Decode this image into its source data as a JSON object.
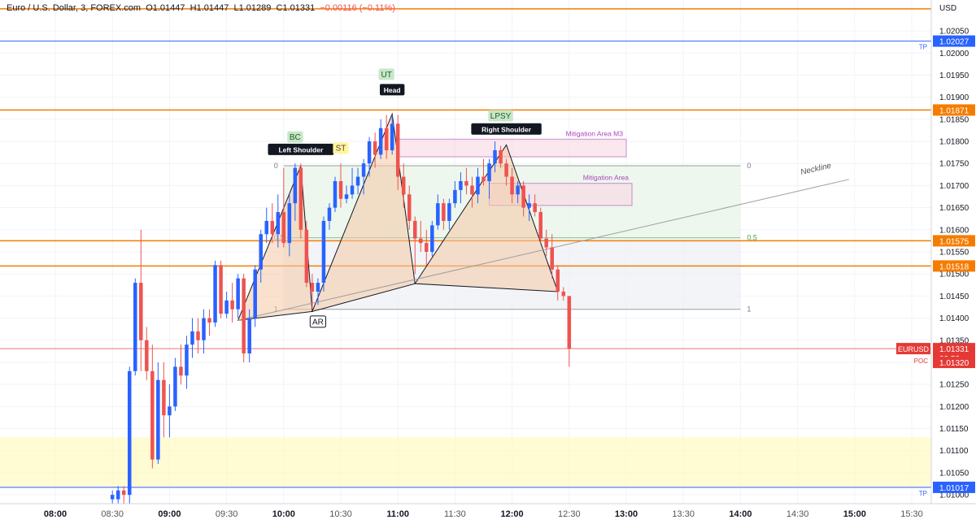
{
  "header": {
    "symbol_name": "Euro / U.S. Dollar, 3, FOREX.com",
    "open": "O1.01447",
    "high": "H1.01447",
    "low": "L1.01289",
    "close": "C1.01331",
    "change": "−0.00116 (−0.11%)"
  },
  "colors": {
    "up": "#2962ff",
    "down": "#ef5350",
    "level": "#f57c00",
    "tp": "#2962ff",
    "current": "#e53935",
    "pattern_fill": "#f4c9a6",
    "mitigation": "#ab47bc",
    "fib_fill": "#e8f5e9",
    "zone_fill": "#fff9c4"
  },
  "chart_data": {
    "type": "candlestick",
    "currency": "USD",
    "ylim": [
      1.0098,
      1.0212
    ],
    "y_ticks": [
      "1.02050",
      "1.02000",
      "1.01950",
      "1.01900",
      "1.01850",
      "1.01800",
      "1.01750",
      "1.01700",
      "1.01650",
      "1.01600",
      "1.01550",
      "1.01500",
      "1.01450",
      "1.01400",
      "1.01350",
      "1.01300",
      "1.01250",
      "1.01200",
      "1.01150",
      "1.01100",
      "1.01050",
      "1.01000"
    ],
    "x_ticks": [
      "08:00",
      "08:30",
      "09:00",
      "09:30",
      "10:00",
      "10:30",
      "11:00",
      "11:30",
      "12:00",
      "12:30",
      "13:00",
      "13:30",
      "14:00",
      "14:30",
      "15:00",
      "15:30"
    ],
    "candles": [
      {
        "t": "08:30",
        "o": 1.0099,
        "h": 1.0101,
        "l": 1.0097,
        "c": 1.01
      },
      {
        "t": "08:33",
        "o": 1.0099,
        "h": 1.0102,
        "l": 1.0097,
        "c": 1.0101
      },
      {
        "t": "08:36",
        "o": 1.0101,
        "h": 1.0102,
        "l": 1.0097,
        "c": 1.01
      },
      {
        "t": "08:39",
        "o": 1.01,
        "h": 1.0129,
        "l": 1.0096,
        "c": 1.0128
      },
      {
        "t": "08:42",
        "o": 1.0128,
        "h": 1.0149,
        "l": 1.0127,
        "c": 1.0148
      },
      {
        "t": "08:45",
        "o": 1.0148,
        "h": 1.016,
        "l": 1.0128,
        "c": 1.0135
      },
      {
        "t": "08:48",
        "o": 1.0135,
        "h": 1.0138,
        "l": 1.0126,
        "c": 1.0128
      },
      {
        "t": "08:51",
        "o": 1.0128,
        "h": 1.0134,
        "l": 1.0106,
        "c": 1.0108
      },
      {
        "t": "08:54",
        "o": 1.0108,
        "h": 1.013,
        "l": 1.0107,
        "c": 1.0126
      },
      {
        "t": "08:57",
        "o": 1.0126,
        "h": 1.013,
        "l": 1.0113,
        "c": 1.0118
      },
      {
        "t": "09:00",
        "o": 1.0118,
        "h": 1.0125,
        "l": 1.0113,
        "c": 1.012
      },
      {
        "t": "09:03",
        "o": 1.012,
        "h": 1.0131,
        "l": 1.0119,
        "c": 1.0129
      },
      {
        "t": "09:06",
        "o": 1.0129,
        "h": 1.0134,
        "l": 1.0125,
        "c": 1.0127
      },
      {
        "t": "09:09",
        "o": 1.0127,
        "h": 1.0136,
        "l": 1.0124,
        "c": 1.0134
      },
      {
        "t": "09:12",
        "o": 1.0134,
        "h": 1.014,
        "l": 1.0131,
        "c": 1.0137
      },
      {
        "t": "09:15",
        "o": 1.0137,
        "h": 1.014,
        "l": 1.0132,
        "c": 1.0135
      },
      {
        "t": "09:18",
        "o": 1.0135,
        "h": 1.0142,
        "l": 1.0132,
        "c": 1.014
      },
      {
        "t": "09:21",
        "o": 1.014,
        "h": 1.0142,
        "l": 1.0136,
        "c": 1.0139
      },
      {
        "t": "09:24",
        "o": 1.0139,
        "h": 1.0153,
        "l": 1.0138,
        "c": 1.0152
      },
      {
        "t": "09:27",
        "o": 1.0152,
        "h": 1.0153,
        "l": 1.014,
        "c": 1.0141
      },
      {
        "t": "09:30",
        "o": 1.0141,
        "h": 1.0146,
        "l": 1.014,
        "c": 1.0144
      },
      {
        "t": "09:33",
        "o": 1.0144,
        "h": 1.0148,
        "l": 1.0139,
        "c": 1.0142
      },
      {
        "t": "09:36",
        "o": 1.0142,
        "h": 1.015,
        "l": 1.014,
        "c": 1.0149
      },
      {
        "t": "09:39",
        "o": 1.0149,
        "h": 1.015,
        "l": 1.013,
        "c": 1.0132
      },
      {
        "t": "09:42",
        "o": 1.0132,
        "h": 1.0142,
        "l": 1.013,
        "c": 1.014
      },
      {
        "t": "09:45",
        "o": 1.014,
        "h": 1.0152,
        "l": 1.0138,
        "c": 1.0151
      },
      {
        "t": "09:48",
        "o": 1.0151,
        "h": 1.016,
        "l": 1.0148,
        "c": 1.0159
      },
      {
        "t": "09:51",
        "o": 1.0159,
        "h": 1.0165,
        "l": 1.0157,
        "c": 1.0162
      },
      {
        "t": "09:54",
        "o": 1.0162,
        "h": 1.0166,
        "l": 1.0157,
        "c": 1.0159
      },
      {
        "t": "09:57",
        "o": 1.0159,
        "h": 1.0168,
        "l": 1.0156,
        "c": 1.0164
      },
      {
        "t": "10:00",
        "o": 1.0164,
        "h": 1.0174,
        "l": 1.0156,
        "c": 1.0157
      },
      {
        "t": "10:03",
        "o": 1.0157,
        "h": 1.0168,
        "l": 1.0154,
        "c": 1.0166
      },
      {
        "t": "10:06",
        "o": 1.0166,
        "h": 1.0175,
        "l": 1.0162,
        "c": 1.0174
      },
      {
        "t": "10:09",
        "o": 1.0174,
        "h": 1.0175,
        "l": 1.0158,
        "c": 1.016
      },
      {
        "t": "10:12",
        "o": 1.016,
        "h": 1.0162,
        "l": 1.0147,
        "c": 1.0148
      },
      {
        "t": "10:15",
        "o": 1.0148,
        "h": 1.015,
        "l": 1.0142,
        "c": 1.0146
      },
      {
        "t": "10:18",
        "o": 1.0146,
        "h": 1.0149,
        "l": 1.0143,
        "c": 1.0148
      },
      {
        "t": "10:21",
        "o": 1.0148,
        "h": 1.0163,
        "l": 1.0146,
        "c": 1.0162
      },
      {
        "t": "10:24",
        "o": 1.0162,
        "h": 1.0166,
        "l": 1.016,
        "c": 1.0165
      },
      {
        "t": "10:27",
        "o": 1.0165,
        "h": 1.0172,
        "l": 1.0164,
        "c": 1.0171
      },
      {
        "t": "10:30",
        "o": 1.0171,
        "h": 1.0175,
        "l": 1.0165,
        "c": 1.0167
      },
      {
        "t": "10:33",
        "o": 1.0167,
        "h": 1.017,
        "l": 1.0166,
        "c": 1.0168
      },
      {
        "t": "10:36",
        "o": 1.0168,
        "h": 1.0174,
        "l": 1.0167,
        "c": 1.017
      },
      {
        "t": "10:39",
        "o": 1.017,
        "h": 1.0174,
        "l": 1.0168,
        "c": 1.0172
      },
      {
        "t": "10:42",
        "o": 1.0172,
        "h": 1.0176,
        "l": 1.0168,
        "c": 1.0175
      },
      {
        "t": "10:45",
        "o": 1.0175,
        "h": 1.0181,
        "l": 1.0172,
        "c": 1.018
      },
      {
        "t": "10:48",
        "o": 1.018,
        "h": 1.0182,
        "l": 1.0174,
        "c": 1.0177
      },
      {
        "t": "10:51",
        "o": 1.0177,
        "h": 1.0185,
        "l": 1.0176,
        "c": 1.0183
      },
      {
        "t": "10:54",
        "o": 1.0183,
        "h": 1.0186,
        "l": 1.0176,
        "c": 1.0178
      },
      {
        "t": "10:57",
        "o": 1.0178,
        "h": 1.0186,
        "l": 1.0177,
        "c": 1.0184
      },
      {
        "t": "11:00",
        "o": 1.0184,
        "h": 1.0186,
        "l": 1.0169,
        "c": 1.0172
      },
      {
        "t": "11:03",
        "o": 1.0172,
        "h": 1.0175,
        "l": 1.0165,
        "c": 1.0168
      },
      {
        "t": "11:06",
        "o": 1.0168,
        "h": 1.017,
        "l": 1.016,
        "c": 1.0162
      },
      {
        "t": "11:09",
        "o": 1.0162,
        "h": 1.0163,
        "l": 1.015,
        "c": 1.0158
      },
      {
        "t": "11:12",
        "o": 1.0158,
        "h": 1.0162,
        "l": 1.0155,
        "c": 1.0157
      },
      {
        "t": "11:15",
        "o": 1.0157,
        "h": 1.016,
        "l": 1.0152,
        "c": 1.0155
      },
      {
        "t": "11:18",
        "o": 1.0155,
        "h": 1.0162,
        "l": 1.0154,
        "c": 1.0161
      },
      {
        "t": "11:21",
        "o": 1.0161,
        "h": 1.0168,
        "l": 1.016,
        "c": 1.0166
      },
      {
        "t": "11:24",
        "o": 1.0166,
        "h": 1.0167,
        "l": 1.016,
        "c": 1.0162
      },
      {
        "t": "11:27",
        "o": 1.0162,
        "h": 1.0167,
        "l": 1.016,
        "c": 1.0166
      },
      {
        "t": "11:30",
        "o": 1.0166,
        "h": 1.0171,
        "l": 1.0165,
        "c": 1.0169
      },
      {
        "t": "11:33",
        "o": 1.0169,
        "h": 1.0173,
        "l": 1.0166,
        "c": 1.0171
      },
      {
        "t": "11:36",
        "o": 1.0171,
        "h": 1.0174,
        "l": 1.0168,
        "c": 1.017
      },
      {
        "t": "11:39",
        "o": 1.017,
        "h": 1.0172,
        "l": 1.0165,
        "c": 1.0168
      },
      {
        "t": "11:42",
        "o": 1.0168,
        "h": 1.0174,
        "l": 1.0166,
        "c": 1.0172
      },
      {
        "t": "11:45",
        "o": 1.0172,
        "h": 1.0176,
        "l": 1.017,
        "c": 1.0171
      },
      {
        "t": "11:48",
        "o": 1.0171,
        "h": 1.0176,
        "l": 1.0167,
        "c": 1.0175
      },
      {
        "t": "11:51",
        "o": 1.0175,
        "h": 1.018,
        "l": 1.0173,
        "c": 1.0178
      },
      {
        "t": "11:54",
        "o": 1.0178,
        "h": 1.0179,
        "l": 1.0174,
        "c": 1.0175
      },
      {
        "t": "11:57",
        "o": 1.0175,
        "h": 1.0176,
        "l": 1.017,
        "c": 1.0172
      },
      {
        "t": "12:00",
        "o": 1.0172,
        "h": 1.0174,
        "l": 1.0166,
        "c": 1.0168
      },
      {
        "t": "12:03",
        "o": 1.0168,
        "h": 1.0171,
        "l": 1.0166,
        "c": 1.017
      },
      {
        "t": "12:06",
        "o": 1.017,
        "h": 1.0171,
        "l": 1.0163,
        "c": 1.0165
      },
      {
        "t": "12:09",
        "o": 1.0165,
        "h": 1.0168,
        "l": 1.0162,
        "c": 1.0166
      },
      {
        "t": "12:12",
        "o": 1.0166,
        "h": 1.0168,
        "l": 1.0163,
        "c": 1.0164
      },
      {
        "t": "12:15",
        "o": 1.0164,
        "h": 1.0165,
        "l": 1.0157,
        "c": 1.0158
      },
      {
        "t": "12:18",
        "o": 1.0158,
        "h": 1.016,
        "l": 1.0154,
        "c": 1.0156
      },
      {
        "t": "12:21",
        "o": 1.0156,
        "h": 1.0159,
        "l": 1.0149,
        "c": 1.0151
      },
      {
        "t": "12:24",
        "o": 1.0151,
        "h": 1.0152,
        "l": 1.0144,
        "c": 1.0146
      },
      {
        "t": "12:27",
        "o": 1.0146,
        "h": 1.0147,
        "l": 1.0144,
        "c": 1.0145
      },
      {
        "t": "12:30",
        "o": 1.0145,
        "h": 1.0145,
        "l": 1.0129,
        "c": 1.01331
      }
    ],
    "levels": [
      {
        "price": 1.021,
        "kind": "level",
        "label": ""
      },
      {
        "price": 1.02027,
        "kind": "tp",
        "label": "1.02027",
        "note": "TP"
      },
      {
        "price": 1.01871,
        "kind": "level",
        "label": "1.01871"
      },
      {
        "price": 1.01575,
        "kind": "level",
        "label": "1.01575"
      },
      {
        "price": 1.01518,
        "kind": "level",
        "label": "1.01518"
      },
      {
        "price": 1.01017,
        "kind": "tp",
        "label": "1.01017",
        "note": "TP"
      }
    ],
    "current_price": {
      "symbol": "EURUSD",
      "price": 1.01331,
      "label": "1.01331",
      "countdown": "00:50"
    },
    "poc": {
      "label": "POC",
      "price": 1.0132,
      "price_label": "1.01320"
    },
    "zone": {
      "from": 1.01017,
      "to": 1.0113
    },
    "fib": {
      "t_start": "10:00",
      "t_end": "14:00",
      "p0": 1.01745,
      "p1": 1.0142,
      "p_half": 1.01582,
      "labels": [
        "0",
        "0.5",
        "1"
      ]
    },
    "mitigation_areas": [
      {
        "label": "Mitigation Area M3",
        "t_start": "11:00",
        "t_end": "13:00",
        "high": 1.01805,
        "low": 1.01765
      },
      {
        "label": "Mitigation Area",
        "t_start": "11:48",
        "t_end": "13:03",
        "high": 1.01705,
        "low": 1.01655
      }
    ],
    "pattern_points": [
      {
        "t": "09:36",
        "p": 1.01395
      },
      {
        "t": "10:09",
        "p": 1.01745
      },
      {
        "t": "10:15",
        "p": 1.01415
      },
      {
        "t": "10:57",
        "p": 1.01862
      },
      {
        "t": "11:09",
        "p": 1.01478
      },
      {
        "t": "11:57",
        "p": 1.01792
      },
      {
        "t": "12:24",
        "p": 1.0146
      }
    ],
    "neckline": {
      "label": "Neckline",
      "t1": "09:36",
      "p1": 1.01395,
      "t2": "14:57",
      "p2": 1.01714
    },
    "annotations": [
      {
        "label": "BC",
        "style": "green",
        "t": "10:06",
        "p": 1.0181
      },
      {
        "label": "Left Shoulder",
        "style": "dark",
        "t": "10:09",
        "p": 1.01782
      },
      {
        "label": "ST",
        "style": "yellow",
        "t": "10:30",
        "p": 1.01785
      },
      {
        "label": "UT",
        "style": "green",
        "t": "10:54",
        "p": 1.01952
      },
      {
        "label": "Head",
        "style": "dark",
        "t": "10:57",
        "p": 1.01917
      },
      {
        "label": "LPSY",
        "style": "green",
        "t": "11:54",
        "p": 1.01858
      },
      {
        "label": "Right Shoulder",
        "style": "dark",
        "t": "11:57",
        "p": 1.01828
      },
      {
        "label": "AR",
        "style": "box",
        "t": "10:18",
        "p": 1.01392
      }
    ]
  }
}
